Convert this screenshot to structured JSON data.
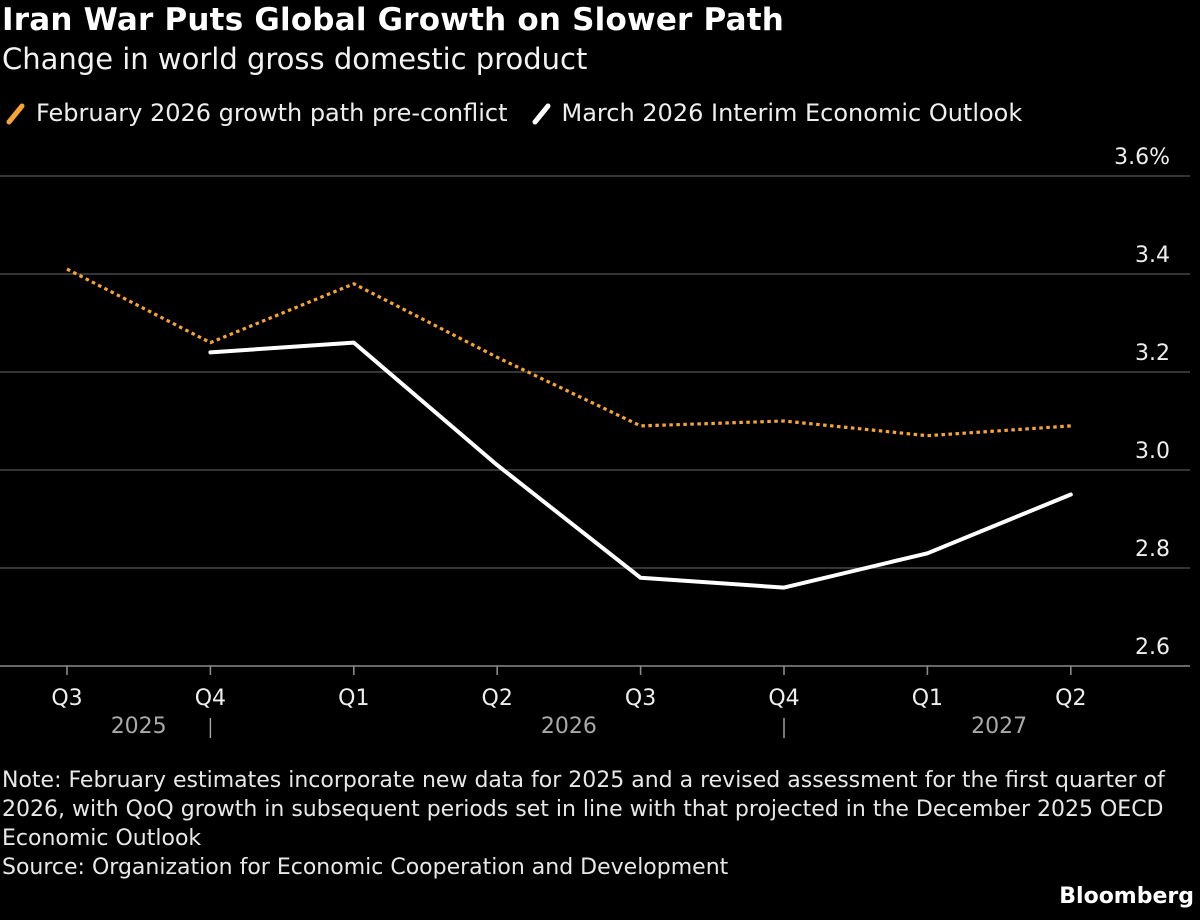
{
  "chart_data": {
    "type": "line",
    "title": "Iran War Puts Global Growth on Slower Path",
    "subtitle": "Change in world gross domestic product",
    "categories": [
      "Q3",
      "Q4",
      "Q1",
      "Q2",
      "Q3",
      "Q4",
      "Q1",
      "Q2"
    ],
    "years": [
      {
        "label": "2025",
        "quarters": [
          "Q3",
          "Q4"
        ]
      },
      {
        "label": "2026",
        "quarters": [
          "Q1",
          "Q2",
          "Q3",
          "Q4"
        ]
      },
      {
        "label": "2027",
        "quarters": [
          "Q1",
          "Q2"
        ]
      }
    ],
    "series": [
      {
        "name": "February 2026 growth path pre-conflict",
        "color": "#f7a434",
        "style": "dotted",
        "values": [
          3.41,
          3.26,
          3.38,
          3.23,
          3.09,
          3.1,
          3.07,
          3.09
        ]
      },
      {
        "name": "March 2026 Interim Economic Outlook",
        "color": "#ffffff",
        "style": "solid",
        "values": [
          null,
          3.24,
          3.26,
          3.01,
          2.78,
          2.76,
          2.83,
          2.95
        ]
      }
    ],
    "ylim": [
      2.6,
      3.6
    ],
    "yticks": [
      "3.6%",
      "3.4",
      "3.2",
      "3.0",
      "2.8",
      "2.6"
    ],
    "ytick_values": [
      3.6,
      3.4,
      3.2,
      3.0,
      2.8,
      2.6
    ],
    "y_axis_position": "right",
    "grid": true,
    "legend_position": "top-left"
  },
  "note": "Note: February estimates incorporate new data for 2025 and a revised assessment for the first quarter of 2026, with QoQ growth in subsequent periods set in line with that projected in the December 2025 OECD Economic Outlook",
  "source": "Source: Organization for Economic Cooperation and Development",
  "brand": "Bloomberg",
  "colors": {
    "background": "#000000",
    "grid": "#555555",
    "pre_conflict": "#f7a434",
    "interim": "#ffffff"
  }
}
